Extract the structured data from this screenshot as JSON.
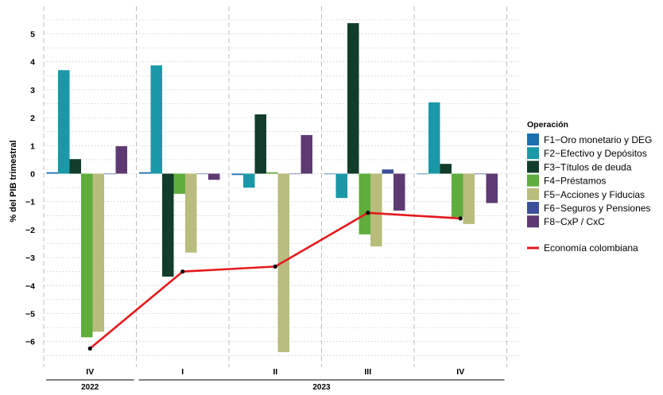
{
  "chart_data": {
    "type": "bar",
    "ylabel": "% del PIB trimestral",
    "ylim": [
      -6.7,
      5.7
    ],
    "y_ticks": [
      -6,
      -5,
      -4,
      -3,
      -2,
      -1,
      0,
      1,
      2,
      3,
      4,
      5
    ],
    "grid": true,
    "legend_position": "right",
    "categories": [
      "IV",
      "I",
      "II",
      "III",
      "IV"
    ],
    "year_labels": [
      {
        "label": "2022",
        "span": [
          0,
          0
        ]
      },
      {
        "label": "2023",
        "span": [
          1,
          4
        ]
      }
    ],
    "legend_title": "Operación",
    "series": [
      {
        "name": "F1−Oro monetario y DEG",
        "color": "#1a6fb0",
        "values": [
          0.05,
          0.05,
          -0.05,
          -0.02,
          -0.02
        ]
      },
      {
        "name": "F2−Efectivo y Depósitos",
        "color": "#1b98a8",
        "values": [
          3.7,
          3.87,
          -0.5,
          -0.87,
          2.55
        ]
      },
      {
        "name": "F3−Títulos de deuda",
        "color": "#113d2a",
        "values": [
          0.52,
          -3.68,
          2.12,
          5.38,
          0.35
        ]
      },
      {
        "name": "F4−Préstamos",
        "color": "#5fad3c",
        "values": [
          -5.85,
          -0.72,
          0.05,
          -2.17,
          -1.55
        ]
      },
      {
        "name": "F5−Acciones y Fiducias",
        "color": "#b8bc7c",
        "values": [
          -5.65,
          -2.82,
          -6.38,
          -2.6,
          -1.8
        ]
      },
      {
        "name": "F6−Seguros y Pensiones",
        "color": "#3c4f9a",
        "values": [
          -0.02,
          0.0,
          0.0,
          0.15,
          -0.02
        ]
      },
      {
        "name": "F8−CxP / CxC",
        "color": "#5e3a72",
        "values": [
          0.98,
          -0.22,
          1.38,
          -1.32,
          -1.05
        ]
      }
    ],
    "line_series": {
      "name": "Economía colombiana",
      "color": "#e5191c",
      "values": [
        -6.25,
        -3.5,
        -3.32,
        -1.4,
        -1.6
      ]
    }
  }
}
